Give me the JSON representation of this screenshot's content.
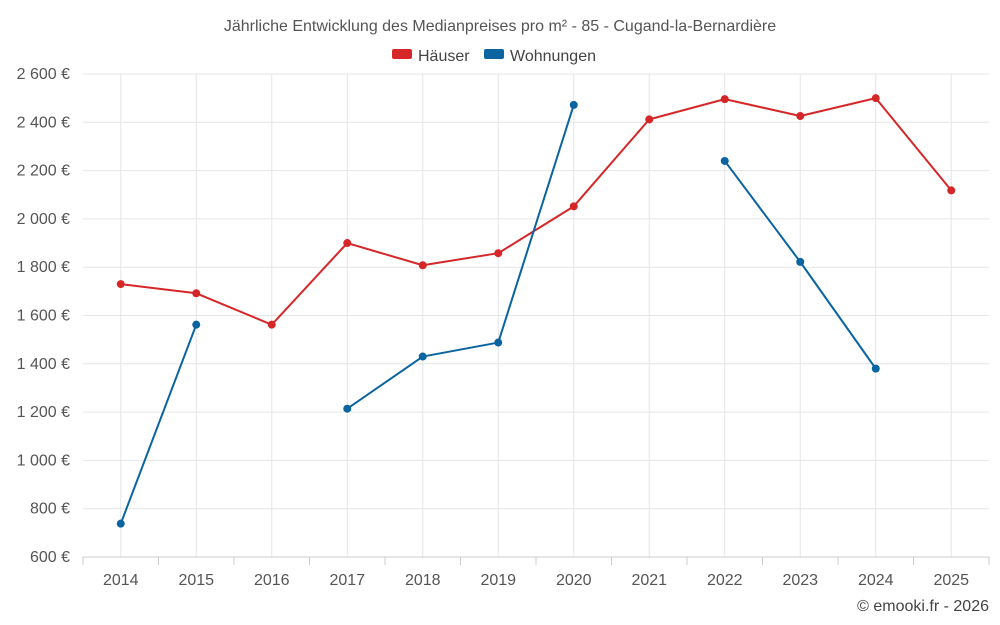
{
  "chart_data": {
    "type": "line",
    "title": "Jährliche Entwicklung des Medianpreises pro m² - 85 - Cugand-la-Bernardière",
    "x": [
      "2014",
      "2015",
      "2016",
      "2017",
      "2018",
      "2019",
      "2020",
      "2021",
      "2022",
      "2023",
      "2024",
      "2025"
    ],
    "ylim": [
      600,
      2600
    ],
    "yticks": [
      600,
      800,
      1000,
      1200,
      1400,
      1600,
      1800,
      2000,
      2200,
      2400,
      2600
    ],
    "ytick_labels": [
      "600 €",
      "800 €",
      "1 000 €",
      "1 200 €",
      "1 400 €",
      "1 600 €",
      "1 800 €",
      "2 000 €",
      "2 200 €",
      "2 400 €",
      "2 600 €"
    ],
    "grid": true,
    "legend_position": "top-center",
    "series": [
      {
        "name": "Häuser",
        "color": "#d62728",
        "values": [
          1730,
          1692,
          1562,
          1900,
          1808,
          1858,
          2052,
          2412,
          2496,
          2426,
          2500,
          2118
        ]
      },
      {
        "name": "Wohnungen",
        "color": "#0a64a0",
        "values": [
          738,
          1562,
          null,
          1214,
          1430,
          1488,
          2472,
          null,
          2240,
          1822,
          1380,
          null
        ]
      }
    ]
  },
  "credit": "© emooki.fr - 2026"
}
